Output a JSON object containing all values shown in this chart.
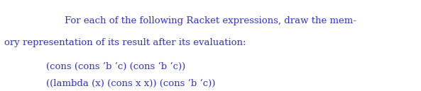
{
  "background_color": "#ffffff",
  "title_line1": "For each of the following Racket expressions, draw the mem-",
  "title_line2": "ory representation of its result after its evaluation:",
  "expr1": "(cons (cons ‘b ‘c) (cons ‘b ‘c))",
  "expr2": "((lambda (x) (cons x x)) (cons ‘b ‘c))",
  "text_color": "#3333cc",
  "font_size_title": 9.5,
  "font_size_expr": 9.5,
  "fig_width": 5.93,
  "fig_height": 1.29,
  "dpi": 100
}
